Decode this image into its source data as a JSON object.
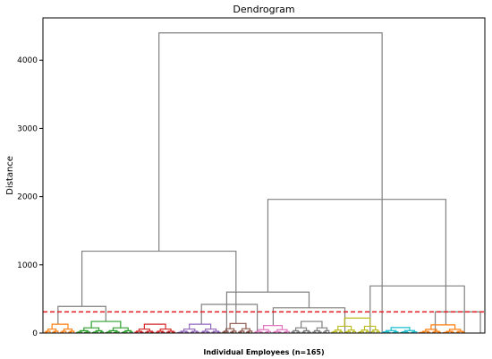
{
  "chart_data": {
    "type": "dendrogram",
    "title": "Dendrogram",
    "xlabel": "Individual Employees (n=165)",
    "ylabel": "Distance",
    "yticks": [
      0,
      1000,
      2000,
      3000,
      4000
    ],
    "ylim": [
      0,
      4620
    ],
    "xlim": [
      0,
      165
    ],
    "grid": false,
    "threshold": {
      "y": 310,
      "color": "#e8181f",
      "style": "dashed"
    },
    "upper_link_color": "#808080",
    "merges": [
      {
        "x1": 43.0,
        "x2": 127.0,
        "y": 4400
      },
      {
        "x1": 14.0,
        "x2": 72.0,
        "y": 1200
      },
      {
        "x1": 84.0,
        "x2": 151.0,
        "y": 1960
      },
      {
        "x1": 5.0,
        "x2": 23.0,
        "y": 390
      },
      {
        "x1": 59.0,
        "x2": 80.0,
        "y": 420
      },
      {
        "x1": 68.5,
        "x2": 99.5,
        "y": 600
      },
      {
        "x1": 122.5,
        "x2": 158.0,
        "y": 690
      },
      {
        "x1": 86.0,
        "x2": 113.0,
        "y": 370
      },
      {
        "x1": 147.0,
        "x2": 164.0,
        "y": 310
      }
    ],
    "clusters": [
      {
        "name": "c1",
        "color": "#ff7f0e",
        "x0": 0,
        "x1": 11,
        "height": 130
      },
      {
        "name": "c2",
        "color": "#2ca02c",
        "x0": 12,
        "x1": 33,
        "height": 170
      },
      {
        "name": "c3",
        "color": "#d62728",
        "x0": 34,
        "x1": 49,
        "height": 130
      },
      {
        "name": "c4",
        "color": "#9467bd",
        "x0": 50,
        "x1": 66,
        "height": 130
      },
      {
        "name": "c5",
        "color": "#8c564b",
        "x0": 67,
        "x1": 78,
        "height": 140
      },
      {
        "name": "c6",
        "color": "#e377c2",
        "x0": 79,
        "x1": 92,
        "height": 110
      },
      {
        "name": "c7",
        "color": "#7f7f7f",
        "x0": 93,
        "x1": 107,
        "height": 170
      },
      {
        "name": "c8",
        "color": "#bcbd22",
        "x0": 108,
        "x1": 126,
        "height": 220
      },
      {
        "name": "c9",
        "color": "#17becf",
        "x0": 127,
        "x1": 140,
        "height": 80
      },
      {
        "name": "c10",
        "color": "#ff7f0e",
        "x0": 141,
        "x1": 158,
        "height": 120
      }
    ]
  }
}
